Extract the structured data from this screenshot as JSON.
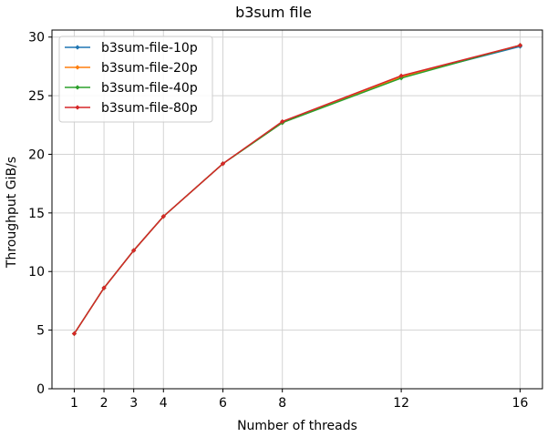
{
  "chart_data": {
    "type": "line",
    "title": "b3sum file",
    "xlabel": "Number of threads",
    "ylabel": "Throughput GiB/s",
    "x": [
      1,
      2,
      3,
      4,
      6,
      8,
      12,
      16
    ],
    "xticks": [
      1,
      2,
      3,
      4,
      6,
      8,
      12,
      16
    ],
    "yticks": [
      0,
      5,
      10,
      15,
      20,
      25,
      30
    ],
    "xlim": [
      0.25,
      16.75
    ],
    "ylim": [
      0,
      30.6
    ],
    "grid": true,
    "legend_position": "top-left",
    "series": [
      {
        "name": "b3sum-file-10p",
        "color": "#1f77b4",
        "values": [
          4.7,
          8.6,
          11.8,
          14.7,
          19.2,
          22.7,
          26.6,
          29.2
        ]
      },
      {
        "name": "b3sum-file-20p",
        "color": "#ff7f0e",
        "values": [
          4.7,
          8.6,
          11.8,
          14.7,
          19.2,
          22.7,
          26.6,
          29.3
        ]
      },
      {
        "name": "b3sum-file-40p",
        "color": "#2ca02c",
        "values": [
          4.7,
          8.6,
          11.8,
          14.7,
          19.2,
          22.7,
          26.5,
          29.3
        ]
      },
      {
        "name": "b3sum-file-80p",
        "color": "#d62728",
        "values": [
          4.7,
          8.6,
          11.8,
          14.7,
          19.2,
          22.8,
          26.7,
          29.3
        ]
      }
    ]
  }
}
